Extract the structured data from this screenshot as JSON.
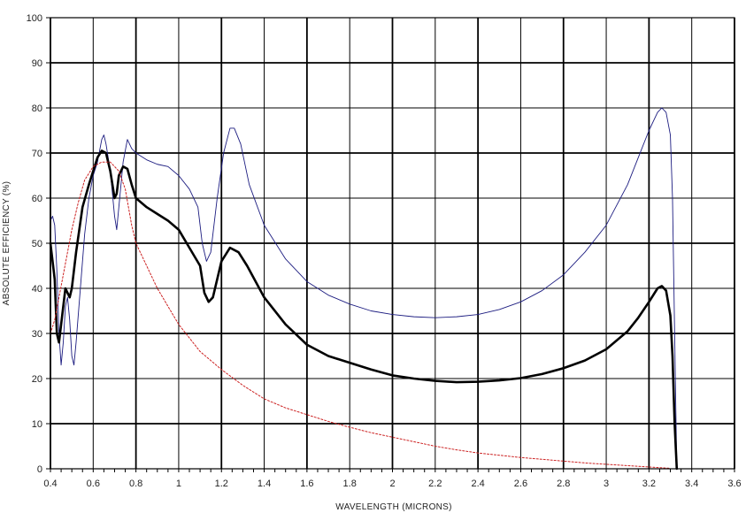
{
  "chart_data": {
    "type": "line",
    "title": "",
    "xlabel": "WAVELENGTH (MICRONS)",
    "ylabel": "ABSOLUTE EFFICIENCY (%)",
    "xlim": [
      0.4,
      3.6
    ],
    "ylim": [
      0,
      100
    ],
    "x_ticks": [
      0.4,
      0.6,
      0.8,
      1.0,
      1.2,
      1.4,
      1.6,
      1.8,
      2.0,
      2.2,
      2.4,
      2.6,
      2.8,
      3.0,
      3.2,
      3.4,
      3.6
    ],
    "x_tick_labels": [
      "0.4",
      "0.6",
      "0.8",
      "1",
      "1.2",
      "1.4",
      "1.6",
      "1.8",
      "2",
      "2.2",
      "2.4",
      "2.6",
      "2.8",
      "3",
      "3.2",
      "3.4",
      "3.6"
    ],
    "y_ticks": [
      0,
      10,
      20,
      30,
      40,
      50,
      60,
      70,
      80,
      90,
      100
    ],
    "y_tick_labels": [
      "0",
      "10",
      "20",
      "30",
      "40",
      "50",
      "60",
      "70",
      "80",
      "90",
      "100"
    ],
    "grid": true,
    "legend": "none",
    "series": [
      {
        "color": "#1c1c80",
        "style": "thin",
        "points": [
          [
            0.4,
            55
          ],
          [
            0.41,
            56
          ],
          [
            0.42,
            54
          ],
          [
            0.43,
            44
          ],
          [
            0.44,
            30
          ],
          [
            0.45,
            23
          ],
          [
            0.46,
            28
          ],
          [
            0.47,
            36
          ],
          [
            0.48,
            38
          ],
          [
            0.49,
            33
          ],
          [
            0.5,
            25
          ],
          [
            0.51,
            23
          ],
          [
            0.52,
            28
          ],
          [
            0.54,
            40
          ],
          [
            0.56,
            52
          ],
          [
            0.58,
            60
          ],
          [
            0.6,
            65
          ],
          [
            0.62,
            68
          ],
          [
            0.64,
            73
          ],
          [
            0.65,
            74
          ],
          [
            0.66,
            72
          ],
          [
            0.68,
            66
          ],
          [
            0.7,
            56
          ],
          [
            0.71,
            53
          ],
          [
            0.72,
            58
          ],
          [
            0.74,
            68
          ],
          [
            0.76,
            73
          ],
          [
            0.78,
            71
          ],
          [
            0.8,
            70
          ],
          [
            0.85,
            68.5
          ],
          [
            0.9,
            67.5
          ],
          [
            0.95,
            67
          ],
          [
            1.0,
            65
          ],
          [
            1.05,
            62
          ],
          [
            1.09,
            58
          ],
          [
            1.11,
            50
          ],
          [
            1.13,
            46
          ],
          [
            1.15,
            48
          ],
          [
            1.18,
            60
          ],
          [
            1.21,
            70
          ],
          [
            1.24,
            75.5
          ],
          [
            1.26,
            75.5
          ],
          [
            1.29,
            72
          ],
          [
            1.33,
            63
          ],
          [
            1.4,
            54
          ],
          [
            1.5,
            46.5
          ],
          [
            1.6,
            41.5
          ],
          [
            1.7,
            38.5
          ],
          [
            1.8,
            36.5
          ],
          [
            1.9,
            35
          ],
          [
            2.0,
            34.2
          ],
          [
            2.1,
            33.7
          ],
          [
            2.2,
            33.5
          ],
          [
            2.3,
            33.7
          ],
          [
            2.4,
            34.2
          ],
          [
            2.5,
            35.3
          ],
          [
            2.6,
            37
          ],
          [
            2.7,
            39.5
          ],
          [
            2.8,
            43
          ],
          [
            2.9,
            48
          ],
          [
            3.0,
            54
          ],
          [
            3.1,
            63
          ],
          [
            3.15,
            69
          ],
          [
            3.2,
            75
          ],
          [
            3.24,
            79
          ],
          [
            3.26,
            80
          ],
          [
            3.28,
            79
          ],
          [
            3.3,
            74
          ],
          [
            3.31,
            60
          ],
          [
            3.32,
            30
          ],
          [
            3.33,
            0
          ]
        ]
      },
      {
        "color": "#000000",
        "style": "thick",
        "points": [
          [
            0.4,
            50
          ],
          [
            0.42,
            42
          ],
          [
            0.43,
            30
          ],
          [
            0.44,
            28
          ],
          [
            0.45,
            32
          ],
          [
            0.47,
            40
          ],
          [
            0.49,
            38
          ],
          [
            0.5,
            40
          ],
          [
            0.52,
            48
          ],
          [
            0.55,
            58
          ],
          [
            0.58,
            63
          ],
          [
            0.6,
            66
          ],
          [
            0.62,
            69
          ],
          [
            0.64,
            70.5
          ],
          [
            0.66,
            70
          ],
          [
            0.68,
            66
          ],
          [
            0.7,
            60
          ],
          [
            0.71,
            61
          ],
          [
            0.72,
            65
          ],
          [
            0.74,
            67
          ],
          [
            0.76,
            66.5
          ],
          [
            0.78,
            63
          ],
          [
            0.8,
            60
          ],
          [
            0.85,
            58
          ],
          [
            0.9,
            56.5
          ],
          [
            0.95,
            55
          ],
          [
            1.0,
            53
          ],
          [
            1.05,
            49
          ],
          [
            1.1,
            45
          ],
          [
            1.12,
            39
          ],
          [
            1.14,
            37
          ],
          [
            1.16,
            38
          ],
          [
            1.2,
            46
          ],
          [
            1.24,
            49
          ],
          [
            1.28,
            48
          ],
          [
            1.32,
            45
          ],
          [
            1.4,
            38
          ],
          [
            1.5,
            32
          ],
          [
            1.6,
            27.5
          ],
          [
            1.7,
            25
          ],
          [
            1.8,
            23.5
          ],
          [
            1.9,
            22
          ],
          [
            2.0,
            20.7
          ],
          [
            2.1,
            20
          ],
          [
            2.2,
            19.5
          ],
          [
            2.3,
            19.2
          ],
          [
            2.4,
            19.3
          ],
          [
            2.5,
            19.6
          ],
          [
            2.6,
            20.1
          ],
          [
            2.7,
            21
          ],
          [
            2.8,
            22.3
          ],
          [
            2.9,
            24
          ],
          [
            3.0,
            26.5
          ],
          [
            3.1,
            30.5
          ],
          [
            3.15,
            33.5
          ],
          [
            3.2,
            37
          ],
          [
            3.24,
            40
          ],
          [
            3.26,
            40.5
          ],
          [
            3.28,
            39.5
          ],
          [
            3.3,
            34
          ],
          [
            3.31,
            25
          ],
          [
            3.32,
            10
          ],
          [
            3.33,
            0
          ]
        ]
      },
      {
        "color": "#cc2222",
        "style": "dotted",
        "points": [
          [
            0.4,
            30
          ],
          [
            0.42,
            33
          ],
          [
            0.44,
            38
          ],
          [
            0.46,
            43
          ],
          [
            0.48,
            48
          ],
          [
            0.5,
            53
          ],
          [
            0.53,
            59
          ],
          [
            0.56,
            64
          ],
          [
            0.6,
            67
          ],
          [
            0.64,
            68
          ],
          [
            0.68,
            68
          ],
          [
            0.7,
            67
          ],
          [
            0.72,
            66
          ],
          [
            0.75,
            62
          ],
          [
            0.78,
            54
          ],
          [
            0.8,
            50
          ],
          [
            0.85,
            45
          ],
          [
            0.9,
            40
          ],
          [
            0.95,
            36
          ],
          [
            1.0,
            32
          ],
          [
            1.05,
            29
          ],
          [
            1.1,
            26
          ],
          [
            1.15,
            24
          ],
          [
            1.2,
            22
          ],
          [
            1.3,
            18.5
          ],
          [
            1.4,
            15.5
          ],
          [
            1.5,
            13.5
          ],
          [
            1.6,
            12
          ],
          [
            1.7,
            10.5
          ],
          [
            1.8,
            9.2
          ],
          [
            1.9,
            8
          ],
          [
            2.0,
            7
          ],
          [
            2.1,
            6
          ],
          [
            2.2,
            5
          ],
          [
            2.3,
            4.2
          ],
          [
            2.4,
            3.5
          ],
          [
            2.5,
            3
          ],
          [
            2.6,
            2.5
          ],
          [
            2.7,
            2.1
          ],
          [
            2.8,
            1.7
          ],
          [
            2.9,
            1.3
          ],
          [
            3.0,
            1
          ],
          [
            3.1,
            0.7
          ],
          [
            3.2,
            0.4
          ],
          [
            3.3,
            0.1
          ]
        ]
      }
    ]
  }
}
